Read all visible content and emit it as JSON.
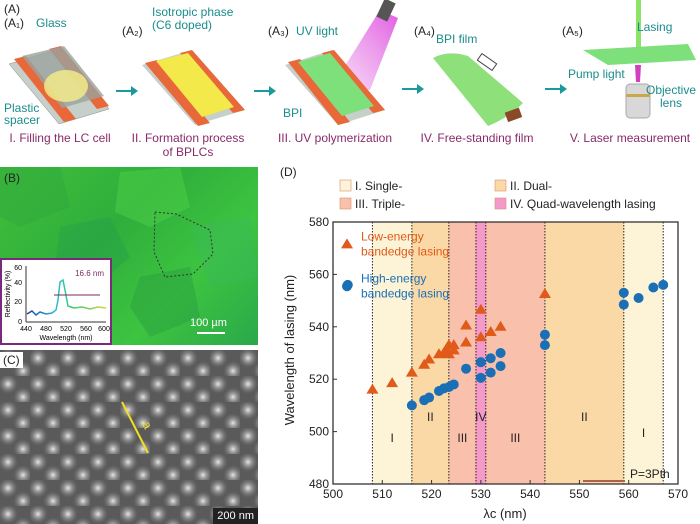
{
  "panelA": {
    "label": "(A)",
    "steps": [
      {
        "id": "(A₁)",
        "caption": "I. Filling the LC cell",
        "annotations": [
          "Glass",
          "Plastic spacer"
        ]
      },
      {
        "id": "(A₂)",
        "caption": "II. Formation process of BPLCs",
        "annotations": [
          "Isotropic phase",
          "(C6 doped)"
        ]
      },
      {
        "id": "(A₃)",
        "caption": "III. UV polymerization",
        "annotations": [
          "UV light",
          "BPI"
        ]
      },
      {
        "id": "(A₄)",
        "caption": "IV. Free-standing film",
        "annotations": [
          "BPI film"
        ]
      },
      {
        "id": "(A₅)",
        "caption": "V. Laser measurement",
        "annotations": [
          "Lasing",
          "Pump light",
          "Objective",
          "lens"
        ]
      }
    ],
    "caption_line2": "of BPLCs",
    "plastic": "Plastic",
    "spacer": "spacer"
  },
  "panelB": {
    "label": "(B)",
    "scalebar": "100 µm",
    "inset": {
      "ylabel": "Reflectivity (%)",
      "xlabel": "Wavelength (nm)",
      "xticks": [
        "440",
        "480",
        "520",
        "560",
        "600"
      ],
      "yticks": [
        "0",
        "20",
        "40",
        "60"
      ],
      "annotation": "16.6 nm"
    }
  },
  "panelC": {
    "label": "(C)",
    "scalebar": "200 nm",
    "marker": "a"
  },
  "chart_data": {
    "type": "scatter",
    "panel_label": "(D)",
    "xlabel": "λc (nm)",
    "ylabel": "Wavelength of lasing (nm)",
    "xlim": [
      500,
      570
    ],
    "ylim": [
      480,
      580
    ],
    "xticks": [
      500,
      510,
      520,
      530,
      540,
      550,
      560,
      570
    ],
    "yticks": [
      480,
      500,
      520,
      540,
      560,
      580
    ],
    "grid": false,
    "legend_regions": [
      {
        "label": "I. Single-",
        "color": "#fdf3d6"
      },
      {
        "label": "II. Dual-",
        "color": "#fbd9a6"
      },
      {
        "label": "III. Triple-",
        "color": "#f9c0ab"
      },
      {
        "label": "IV. Quad-wavelength lasing",
        "color": "#f59ac8"
      }
    ],
    "regions": [
      {
        "from": 508,
        "to": 516,
        "type": "I",
        "label": "I",
        "label_y": 496
      },
      {
        "from": 516,
        "to": 523.5,
        "type": "II",
        "label": "II",
        "label_y": 504
      },
      {
        "from": 523.5,
        "to": 529,
        "type": "III",
        "label": "III",
        "label_y": 496
      },
      {
        "from": 529,
        "to": 531,
        "type": "IV",
        "label": "IV",
        "label_y": 504
      },
      {
        "from": 531,
        "to": 543,
        "type": "III",
        "label": "III",
        "label_y": 496
      },
      {
        "from": 543,
        "to": 559,
        "type": "II",
        "label": "II",
        "label_y": 504
      },
      {
        "from": 559,
        "to": 567,
        "type": "I",
        "label": "I",
        "label_y": 498
      }
    ],
    "boundaries": [
      508,
      516,
      523.5,
      529,
      531,
      543,
      559,
      567
    ],
    "series": [
      {
        "name": "Low-energy bandedge lasing",
        "legend_lines": [
          "Low-energy",
          "bandedge lasing"
        ],
        "marker": "triangle",
        "color": "#e05a1a",
        "points": [
          [
            508,
            516
          ],
          [
            512,
            518.5
          ],
          [
            516,
            522.5
          ],
          [
            518.5,
            525.5
          ],
          [
            519.5,
            527.5
          ],
          [
            521.5,
            529.5
          ],
          [
            522.5,
            530
          ],
          [
            523,
            531.5
          ],
          [
            523.5,
            529.5
          ],
          [
            523.5,
            533
          ],
          [
            524.5,
            531
          ],
          [
            524.5,
            533
          ],
          [
            527,
            540.5
          ],
          [
            527,
            534
          ],
          [
            530,
            546.5
          ],
          [
            530,
            536
          ],
          [
            532,
            538
          ],
          [
            534,
            540
          ],
          [
            543,
            552.5
          ]
        ]
      },
      {
        "name": "High-energy bandedge lasing",
        "legend_lines": [
          "High-energy",
          "bandedge lasing"
        ],
        "marker": "circle",
        "color": "#1a6fb5",
        "points": [
          [
            503,
            556
          ],
          [
            516,
            510
          ],
          [
            518.5,
            512
          ],
          [
            519.5,
            513
          ],
          [
            521.5,
            515.5
          ],
          [
            522.5,
            516.5
          ],
          [
            523.5,
            517
          ],
          [
            524.5,
            518
          ],
          [
            527,
            524
          ],
          [
            530,
            526.5
          ],
          [
            530,
            520.5
          ],
          [
            532,
            528
          ],
          [
            532,
            522.5
          ],
          [
            534,
            530
          ],
          [
            534,
            525
          ],
          [
            543,
            537
          ],
          [
            543,
            533
          ],
          [
            559,
            553
          ],
          [
            559,
            548.5
          ],
          [
            562,
            551
          ],
          [
            565,
            555
          ],
          [
            567,
            556
          ]
        ]
      }
    ],
    "annotation": "P=3Pth"
  }
}
